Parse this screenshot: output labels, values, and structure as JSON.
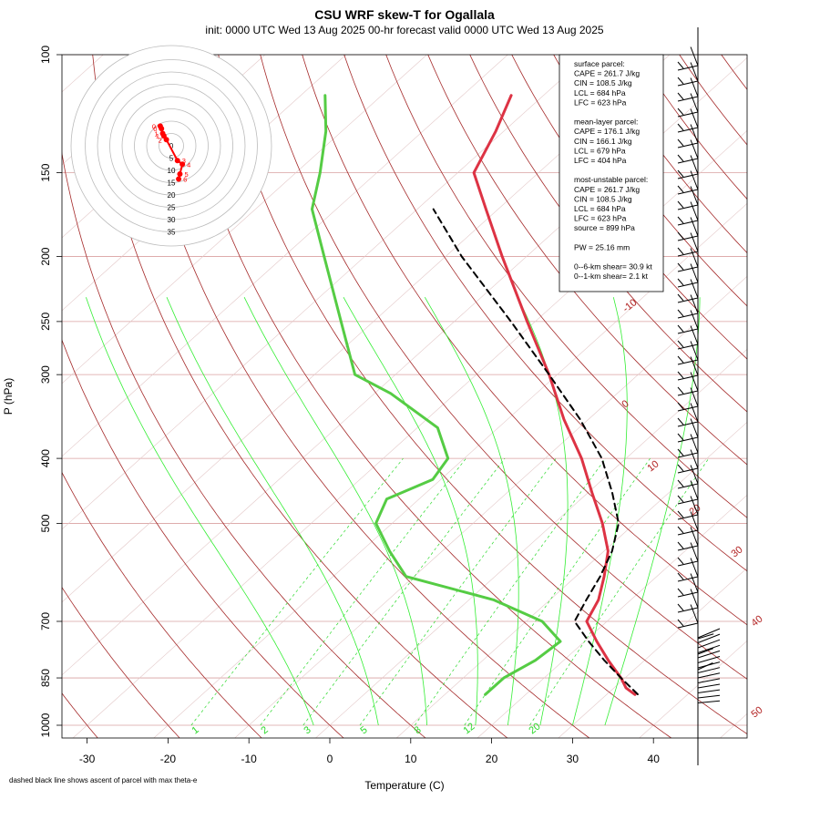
{
  "title": "CSU WRF skew-T for Ogallala",
  "subtitle": "init: 0000 UTC Wed 13 Aug 2025     00-hr forecast valid 0000 UTC Wed 13 Aug 2025",
  "footnote": "dashed black line shows ascent of parcel with max theta-e",
  "colors": {
    "isotherm": "#a52a2a",
    "isobar": "#d9a0a0",
    "dry_adiabat_label": "#b22222",
    "mixing_ratio": "#2bd92b",
    "temperature": "#dd3344",
    "dewpoint": "#55cc44",
    "parcel": "#000000",
    "hodograph": "#ff0000"
  },
  "info_box": {
    "lines": [
      "surface parcel:",
      "CAPE = 261.7 J/kg",
      "CIN = 108.5 J/kg",
      "LCL = 684 hPa",
      "LFC = 623 hPa",
      "",
      "mean-layer parcel:",
      "CAPE = 176.1 J/kg",
      "CIN = 166.1 J/kg",
      "LCL = 679 hPa",
      "LFC = 404 hPa",
      "",
      "most-unstable parcel:",
      "CAPE = 261.7 J/kg",
      "CIN = 108.5 J/kg",
      "LCL = 684 hPa",
      "LFC = 623 hPa",
      "source = 899 hPa",
      "",
      "PW =  25.16 mm",
      "",
      "0--6-km shear= 30.9 kt",
      "0--1-km shear= 2.1 kt"
    ]
  },
  "hodograph": {
    "ring_labels": [
      "0",
      "5",
      "10",
      "15",
      "20",
      "25",
      "30",
      "35"
    ],
    "ring_spacing_kt": 5,
    "point_labels": [
      "0",
      "0",
      "1",
      "1",
      "2",
      "3",
      "4",
      "5",
      "6"
    ],
    "points_u": [
      -4,
      -4.5,
      -3.5,
      -3,
      -2,
      2.5,
      4.5,
      3.5,
      3
    ],
    "points_v": [
      7,
      8,
      5,
      4,
      2.5,
      -6,
      -7.5,
      -11.5,
      -13.5
    ]
  },
  "chart_data": {
    "type": "line",
    "title": "CSU WRF skew-T for Ogallala",
    "subtitle": "init: 0000 UTC Wed 13 Aug 2025     00-hr forecast valid 0000 UTC Wed 13 Aug 2025",
    "xlabel": "Temperature (C)",
    "ylabel": "P (hPa)",
    "x_ticks": [
      -30,
      -20,
      -10,
      0,
      10,
      20,
      30,
      40
    ],
    "y_ticks": [
      100,
      150,
      200,
      250,
      300,
      400,
      500,
      700,
      850,
      1000
    ],
    "xlim": [
      -33,
      45
    ],
    "ylim": [
      1050,
      100
    ],
    "y_scale": "log",
    "dry_adiabat_labels": [
      "-10",
      "0",
      "10",
      "20",
      "30",
      "40",
      "50"
    ],
    "mixing_ratio_labels": [
      "1",
      "2",
      "3",
      "5",
      "8",
      "12",
      "20"
    ],
    "series": [
      {
        "name": "",
        "p": [
          900,
          880,
          850,
          800,
          750,
          700,
          650,
          600,
          550,
          500,
          450,
          400,
          350,
          300,
          250,
          200,
          170,
          150,
          130,
          115
        ],
        "t": [
          33.5,
          31.5,
          29.5,
          25.5,
          21.5,
          17.5,
          16,
          13.5,
          10.5,
          6,
          0.5,
          -5.5,
          -13,
          -21,
          -31,
          -43,
          -51.5,
          -58,
          -61,
          -64
        ]
      },
      {
        "name": "",
        "p": [
          900,
          850,
          800,
          750,
          700,
          650,
          600,
          550,
          500,
          460,
          430,
          400,
          360,
          320,
          300,
          250,
          200,
          170,
          150,
          130,
          115
        ],
        "t": [
          15,
          15,
          16.5,
          17,
          12,
          3,
          -11,
          -16.5,
          -22,
          -24,
          -21,
          -22,
          -27.5,
          -38,
          -45,
          -54,
          -65,
          -73,
          -77,
          -82,
          -87
        ]
      },
      {
        "name": "",
        "p": [
          899,
          850,
          800,
          750,
          700,
          650,
          600,
          550,
          500,
          450,
          400,
          350,
          300,
          250,
          200,
          170
        ],
        "t": [
          33.8,
          29.5,
          25,
          20.5,
          16,
          14.5,
          13,
          11,
          8,
          3,
          -3,
          -11,
          -21,
          -33,
          -48,
          -58
        ]
      }
    ]
  }
}
